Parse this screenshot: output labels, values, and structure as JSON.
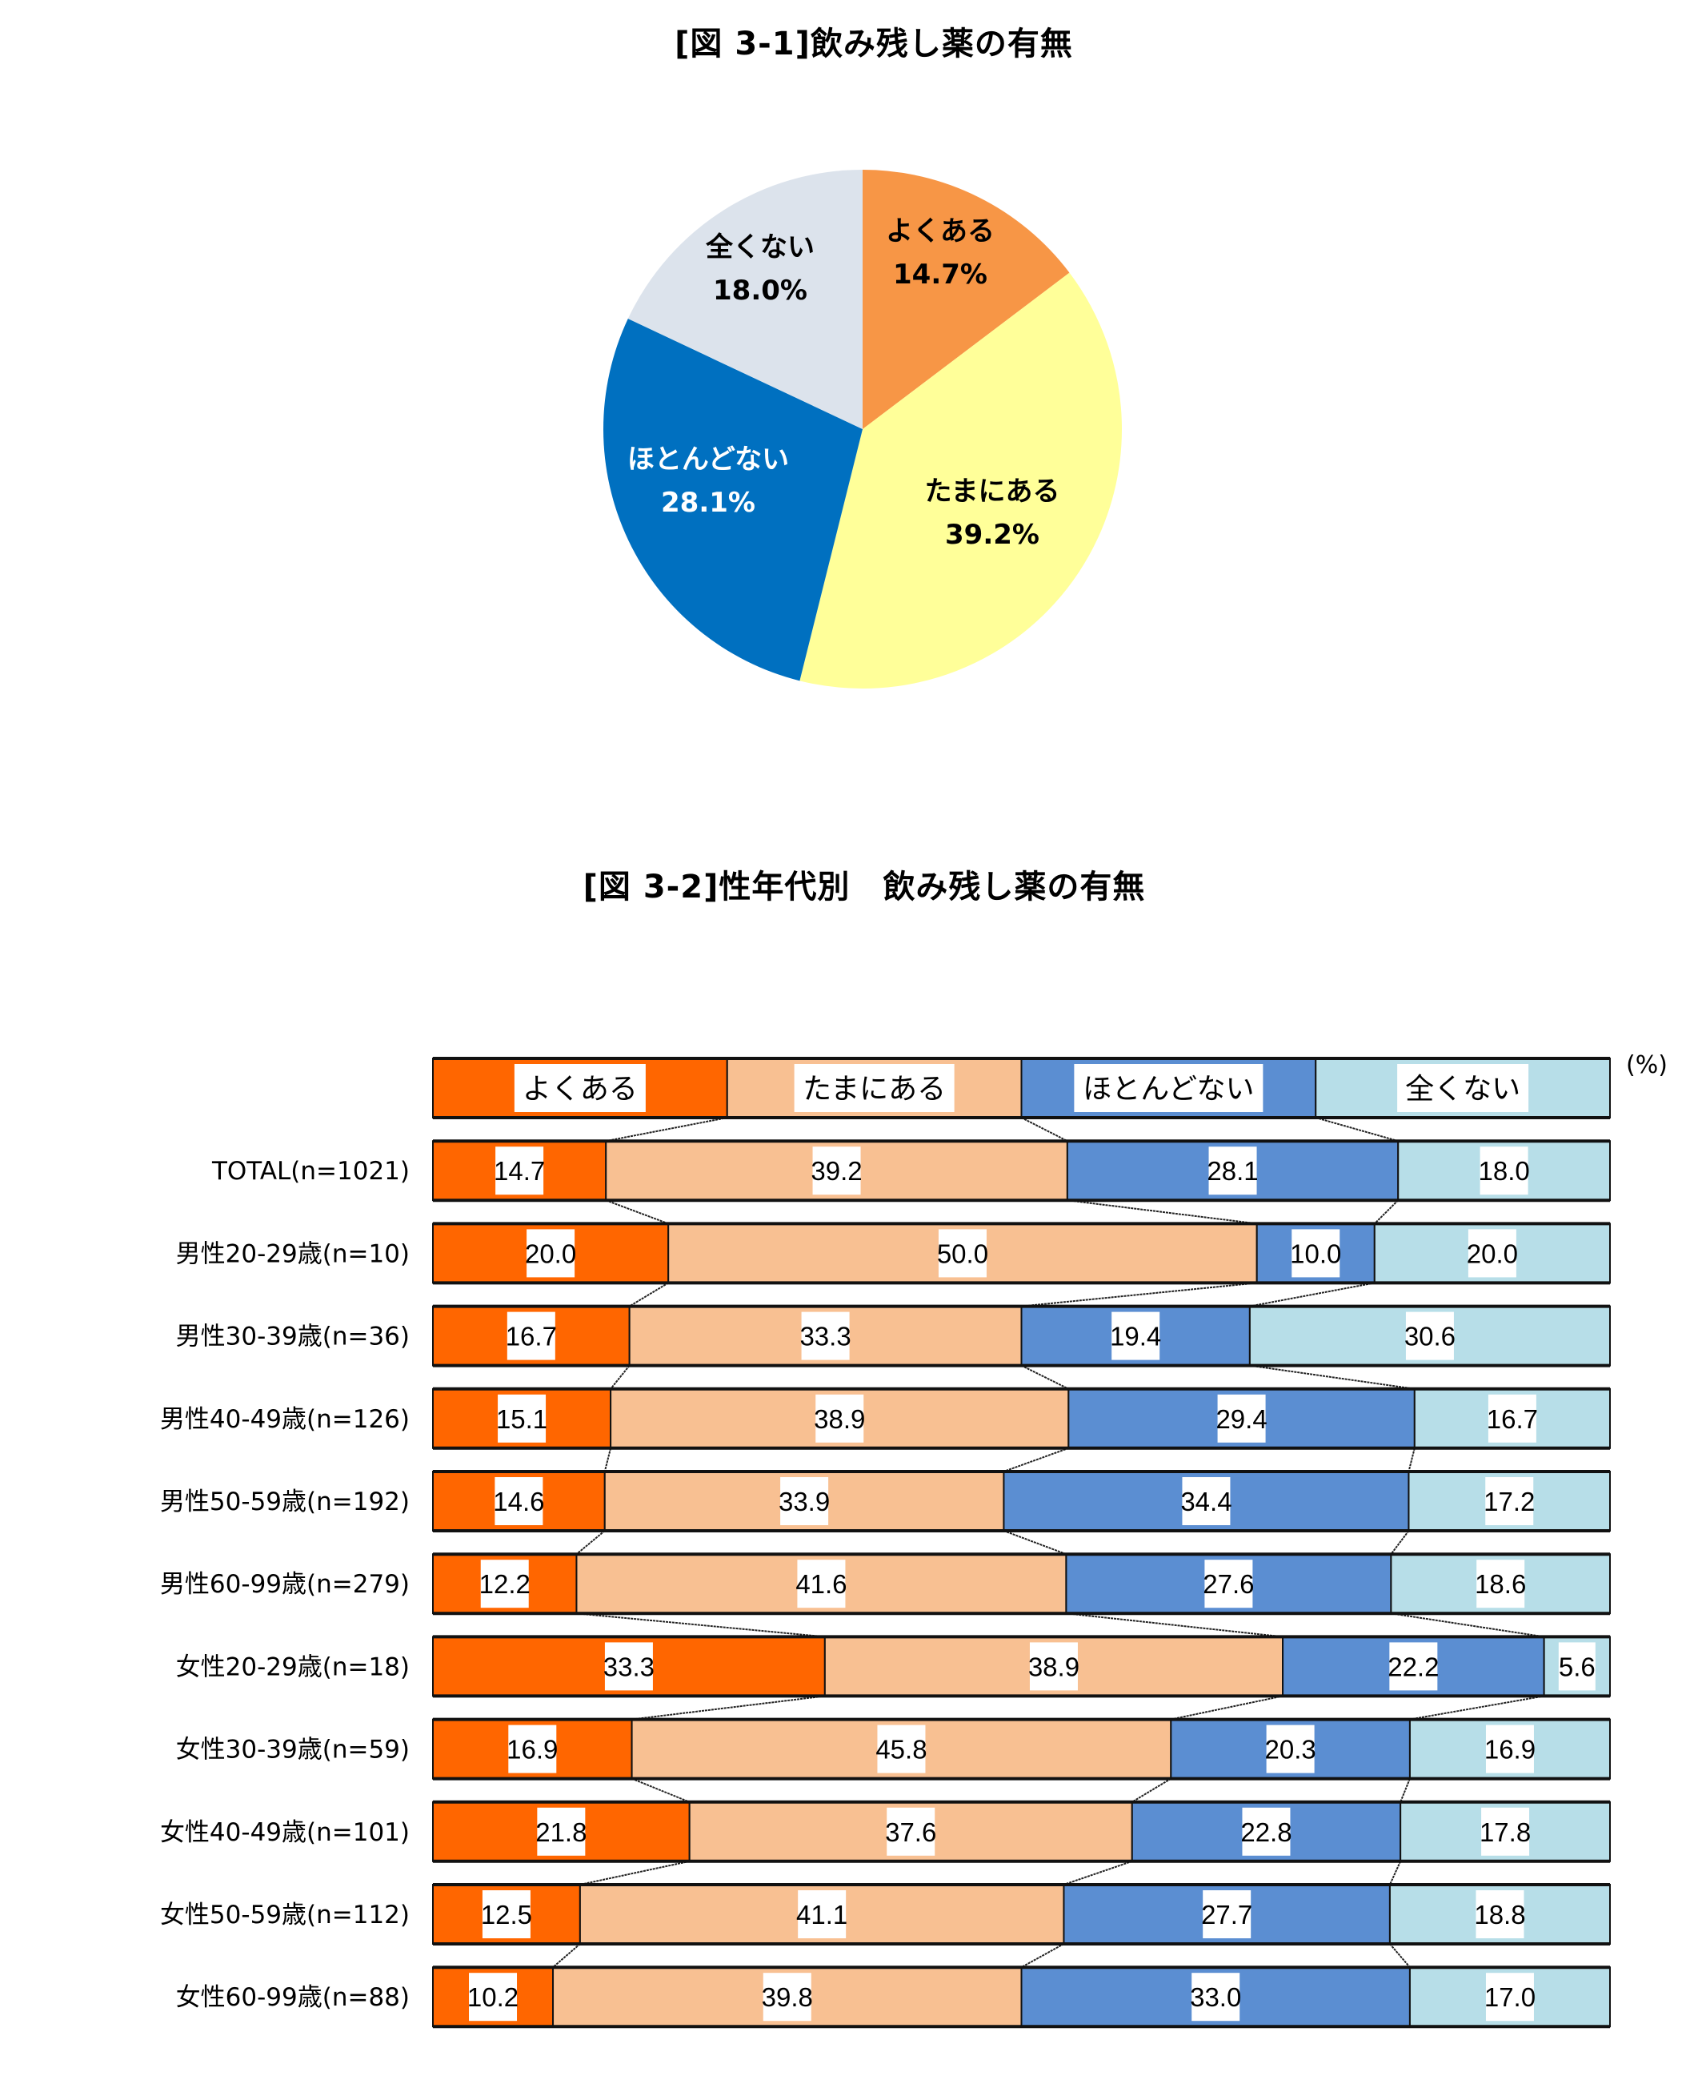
{
  "titles": {
    "fig1": "[図 3-1]飲み残し薬の有無",
    "fig2": "[図 3-2]性年代別　飲み残し薬の有無"
  },
  "chart_data": [
    {
      "type": "pie",
      "title": "[図 3-1]飲み残し薬の有無",
      "categories": [
        "よくある",
        "たまにある",
        "ほとんどない",
        "全くない"
      ],
      "values": [
        14.7,
        39.2,
        28.1,
        18.0
      ],
      "labels": [
        "14.7%",
        "39.2%",
        "28.1%",
        "18.0%"
      ],
      "colors": [
        "#F79646",
        "#FFFF99",
        "#0070C0",
        "#DCE3EC"
      ],
      "label_colors": [
        "#000000",
        "#000000",
        "#FFFFFF",
        "#000000"
      ],
      "start_angle_deg": 0,
      "direction": "clockwise",
      "legend": "none (labels inside slices)"
    },
    {
      "type": "bar",
      "orientation": "horizontal-100%-stacked",
      "title": "[図 3-2]性年代別　飲み残し薬の有無",
      "unit_label": "(%)",
      "series_names": [
        "よくある",
        "たまにある",
        "ほとんどない",
        "全くない"
      ],
      "colors": [
        "#FF6600",
        "#F8C092",
        "#5B8ED2",
        "#B7DEE8"
      ],
      "legend_position": "top (as a bar with equal segments)",
      "categories": [
        "TOTAL(n=1021)",
        "男性20-29歳(n=10)",
        "男性30-39歳(n=36)",
        "男性40-49歳(n=126)",
        "男性50-59歳(n=192)",
        "男性60-99歳(n=279)",
        "女性20-29歳(n=18)",
        "女性30-39歳(n=59)",
        "女性40-49歳(n=101)",
        "女性50-59歳(n=112)",
        "女性60-99歳(n=88)"
      ],
      "series": [
        {
          "name": "よくある",
          "values": [
            14.7,
            20.0,
            16.7,
            15.1,
            14.6,
            12.2,
            33.3,
            16.9,
            21.8,
            12.5,
            10.2
          ]
        },
        {
          "name": "たまにある",
          "values": [
            39.2,
            50.0,
            33.3,
            38.9,
            33.9,
            41.6,
            38.9,
            45.8,
            37.6,
            41.1,
            39.8
          ]
        },
        {
          "name": "ほとんどない",
          "values": [
            28.1,
            10.0,
            19.4,
            29.4,
            34.4,
            27.6,
            22.2,
            20.3,
            22.8,
            27.7,
            33.0
          ]
        },
        {
          "name": "全くない",
          "values": [
            18.0,
            20.0,
            30.6,
            16.7,
            17.2,
            18.6,
            5.6,
            16.9,
            17.8,
            18.8,
            17.0
          ]
        }
      ],
      "value_labels": [
        [
          "14.7",
          "39.2",
          "28.1",
          "18.0"
        ],
        [
          "20.0",
          "50.0",
          "10.0",
          "20.0"
        ],
        [
          "16.7",
          "33.3",
          "19.4",
          "30.6"
        ],
        [
          "15.1",
          "38.9",
          "29.4",
          "16.7"
        ],
        [
          "14.6",
          "33.9",
          "34.4",
          "17.2"
        ],
        [
          "12.2",
          "41.6",
          "27.6",
          "18.6"
        ],
        [
          "33.3",
          "38.9",
          "22.2",
          "5.6"
        ],
        [
          "16.9",
          "45.8",
          "20.3",
          "16.9"
        ],
        [
          "21.8",
          "37.6",
          "22.8",
          "17.8"
        ],
        [
          "12.5",
          "41.1",
          "27.7",
          "18.8"
        ],
        [
          "10.2",
          "39.8",
          "33.0",
          "17.0"
        ]
      ],
      "xlim": [
        0,
        100
      ],
      "grid": false,
      "series_connector_lines": true
    }
  ]
}
